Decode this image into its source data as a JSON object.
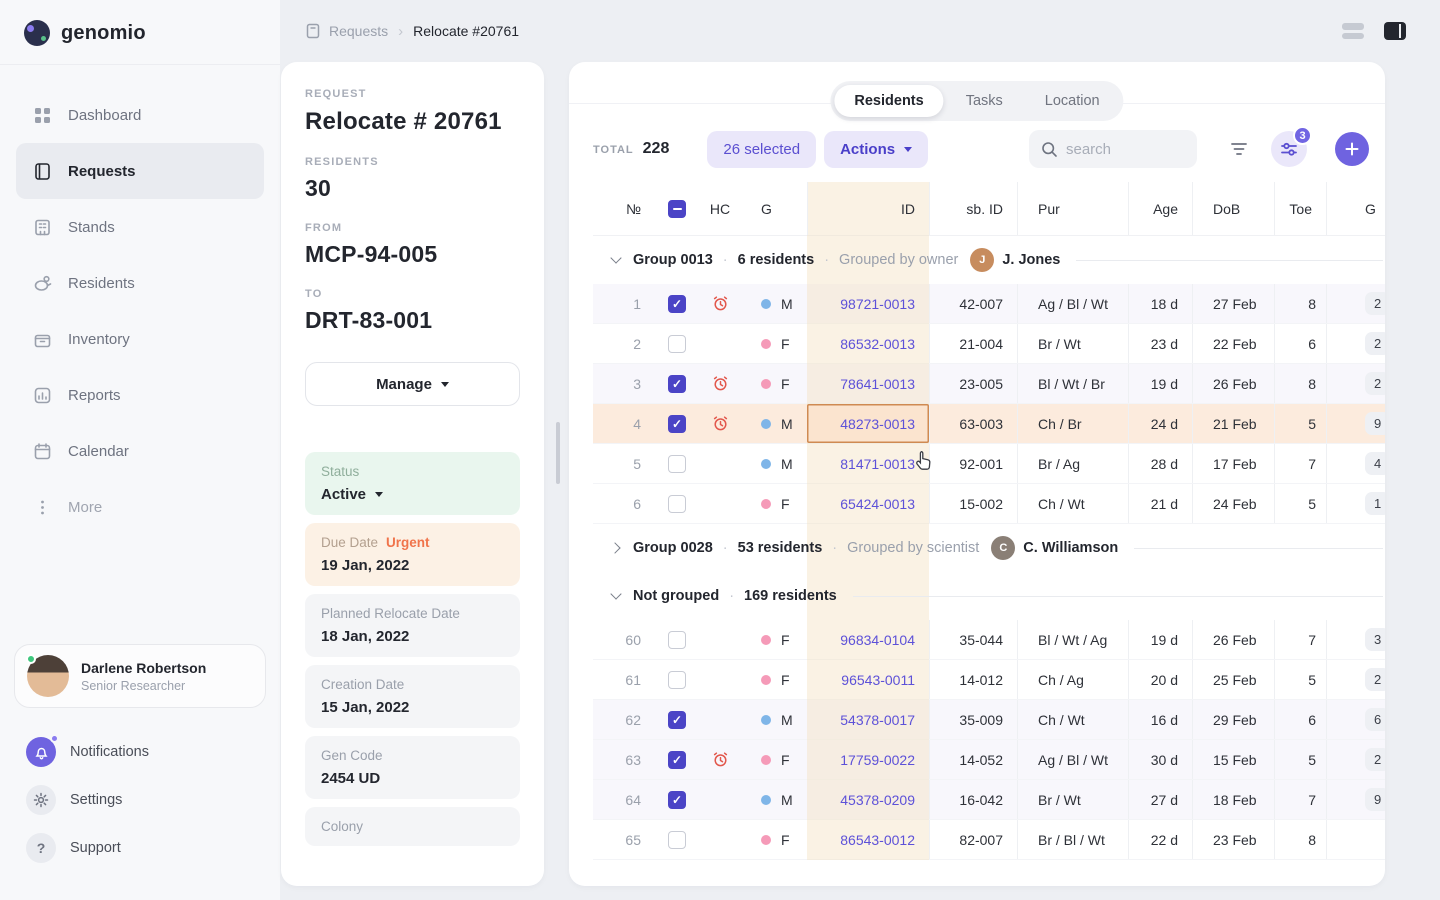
{
  "colors": {
    "accent": "#6F63E0",
    "link": "#5D51D8",
    "urgent": "#F0744B",
    "health_concern": "#E2574C",
    "male_dot": "#7FB5E8",
    "female_dot": "#F59AB8",
    "status_active_bg": "#E9F6EE",
    "due_bg": "#FCF1E5",
    "id_column_bg": "#FBF2E3",
    "row_selected_bg": "#F8F7FC",
    "row_highlight_bg": "#FCEBDD"
  },
  "sidebar": {
    "logo": "genomio",
    "items": [
      {
        "label": "Dashboard",
        "icon": "dashboard-icon",
        "active": false
      },
      {
        "label": "Requests",
        "icon": "requests-icon",
        "active": true
      },
      {
        "label": "Stands",
        "icon": "stands-icon",
        "active": false
      },
      {
        "label": "Residents",
        "icon": "residents-icon",
        "active": false
      },
      {
        "label": "Inventory",
        "icon": "inventory-icon",
        "active": false
      },
      {
        "label": "Reports",
        "icon": "reports-icon",
        "active": false
      },
      {
        "label": "Calendar",
        "icon": "calendar-icon",
        "active": false
      },
      {
        "label": "More",
        "icon": "more-icon",
        "active": false,
        "dim": true
      }
    ],
    "user": {
      "name": "Darlene Robertson",
      "role": "Senior Researcher"
    },
    "footer": [
      {
        "label": "Notifications",
        "icon": "bell-icon",
        "accent": true,
        "dot": true
      },
      {
        "label": "Settings",
        "icon": "gear-icon"
      },
      {
        "label": "Support",
        "icon": "question-icon"
      }
    ]
  },
  "breadcrumb": {
    "section": "Requests",
    "current": "Relocate #20761"
  },
  "request": {
    "overline": "REQUEST",
    "title": "Relocate # 20761",
    "fields": [
      {
        "label": "RESIDENTS",
        "value": "30"
      },
      {
        "label": "FROM",
        "value": "MCP-94-005"
      },
      {
        "label": "TO",
        "value": "DRT-83-001"
      }
    ],
    "manage_label": "Manage",
    "tiles": [
      {
        "type": "status",
        "label": "Status",
        "value": "Active",
        "caret": true
      },
      {
        "type": "due",
        "label": "Due Date",
        "badge": "Urgent",
        "value": "19 Jan, 2022"
      },
      {
        "type": "plain",
        "label": "Planned Relocate Date",
        "value": "18 Jan, 2022"
      },
      {
        "type": "plain",
        "label": "Creation Date",
        "value": "15 Jan, 2022"
      },
      {
        "type": "plain",
        "label": "Gen Code",
        "value": "2454 UD"
      },
      {
        "type": "plain",
        "label": "Colony",
        "value": ""
      }
    ]
  },
  "main": {
    "tabs": [
      {
        "label": "Residents",
        "active": true
      },
      {
        "label": "Tasks",
        "active": false
      },
      {
        "label": "Location",
        "active": false
      }
    ],
    "toolbar": {
      "total_label": "TOTAL",
      "total": "228",
      "selected": "26 selected",
      "actions": "Actions",
      "search_placeholder": "search",
      "filter_badge": "3"
    }
  },
  "table": {
    "columns": [
      "№",
      "",
      "HC",
      "G",
      "ID",
      "sb. ID",
      "Pur",
      "Age",
      "DoB",
      "Toe",
      "G"
    ],
    "groups": [
      {
        "name": "Group 0013",
        "count": "6 residents",
        "grouped_by": "Grouped by owner",
        "owner": "J. Jones",
        "owner_initial": "J",
        "expanded": true,
        "rows": [
          {
            "num": "1",
            "checked": true,
            "hc": true,
            "gender": "M",
            "id": "98721-0013",
            "sb": "42-007",
            "pur": "Ag / Bl / Wt",
            "age": "18 d",
            "dob": "27 Feb",
            "toe": "8",
            "g": "2",
            "highlight": false
          },
          {
            "num": "2",
            "checked": false,
            "hc": false,
            "gender": "F",
            "id": "86532-0013",
            "sb": "21-004",
            "pur": "Br / Wt",
            "age": "23 d",
            "dob": "22 Feb",
            "toe": "6",
            "g": "2",
            "highlight": false
          },
          {
            "num": "3",
            "checked": true,
            "hc": true,
            "gender": "F",
            "id": "78641-0013",
            "sb": "23-005",
            "pur": "Bl / Wt / Br",
            "age": "19 d",
            "dob": "26 Feb",
            "toe": "8",
            "g": "2",
            "highlight": false
          },
          {
            "num": "4",
            "checked": true,
            "hc": true,
            "gender": "M",
            "id": "48273-0013",
            "sb": "63-003",
            "pur": "Ch / Br",
            "age": "24 d",
            "dob": "21 Feb",
            "toe": "5",
            "g": "9",
            "highlight": true,
            "id_selected": true
          },
          {
            "num": "5",
            "checked": false,
            "hc": false,
            "gender": "M",
            "id": "81471-0013",
            "sb": "92-001",
            "pur": "Br / Ag",
            "age": "28 d",
            "dob": "17 Feb",
            "toe": "7",
            "g": "4",
            "highlight": false
          },
          {
            "num": "6",
            "checked": false,
            "hc": false,
            "gender": "F",
            "id": "65424-0013",
            "sb": "15-002",
            "pur": "Ch / Wt",
            "age": "21 d",
            "dob": "24 Feb",
            "toe": "5",
            "g": "1",
            "highlight": false
          }
        ]
      },
      {
        "name": "Group 0028",
        "count": "53 residents",
        "grouped_by": "Grouped by scientist",
        "owner": "C. Williamson",
        "owner_initial": "C",
        "expanded": false,
        "rows": []
      },
      {
        "name": "Not grouped",
        "count": "169 residents",
        "grouped_by": "",
        "owner": "",
        "expanded": true,
        "rows": [
          {
            "num": "60",
            "checked": false,
            "hc": false,
            "gender": "F",
            "id": "96834-0104",
            "sb": "35-044",
            "pur": "Bl / Wt / Ag",
            "age": "19 d",
            "dob": "26 Feb",
            "toe": "7",
            "g": "3",
            "highlight": false
          },
          {
            "num": "61",
            "checked": false,
            "hc": false,
            "gender": "F",
            "id": "96543-0011",
            "sb": "14-012",
            "pur": "Ch / Ag",
            "age": "20 d",
            "dob": "25 Feb",
            "toe": "5",
            "g": "2",
            "highlight": false
          },
          {
            "num": "62",
            "checked": true,
            "hc": false,
            "gender": "M",
            "id": "54378-0017",
            "sb": "35-009",
            "pur": "Ch / Wt",
            "age": "16 d",
            "dob": "29 Feb",
            "toe": "6",
            "g": "6",
            "highlight": false
          },
          {
            "num": "63",
            "checked": true,
            "hc": true,
            "gender": "F",
            "id": "17759-0022",
            "sb": "14-052",
            "pur": "Ag / Bl / Wt",
            "age": "30 d",
            "dob": "15 Feb",
            "toe": "5",
            "g": "2",
            "highlight": false
          },
          {
            "num": "64",
            "checked": true,
            "hc": false,
            "gender": "M",
            "id": "45378-0209",
            "sb": "16-042",
            "pur": "Br / Wt",
            "age": "27 d",
            "dob": "18 Feb",
            "toe": "7",
            "g": "9",
            "highlight": false
          },
          {
            "num": "65",
            "checked": false,
            "hc": false,
            "gender": "F",
            "id": "86543-0012",
            "sb": "82-007",
            "pur": "Br / Bl / Wt",
            "age": "22 d",
            "dob": "23 Feb",
            "toe": "8",
            "g": "",
            "highlight": false
          }
        ]
      }
    ]
  }
}
